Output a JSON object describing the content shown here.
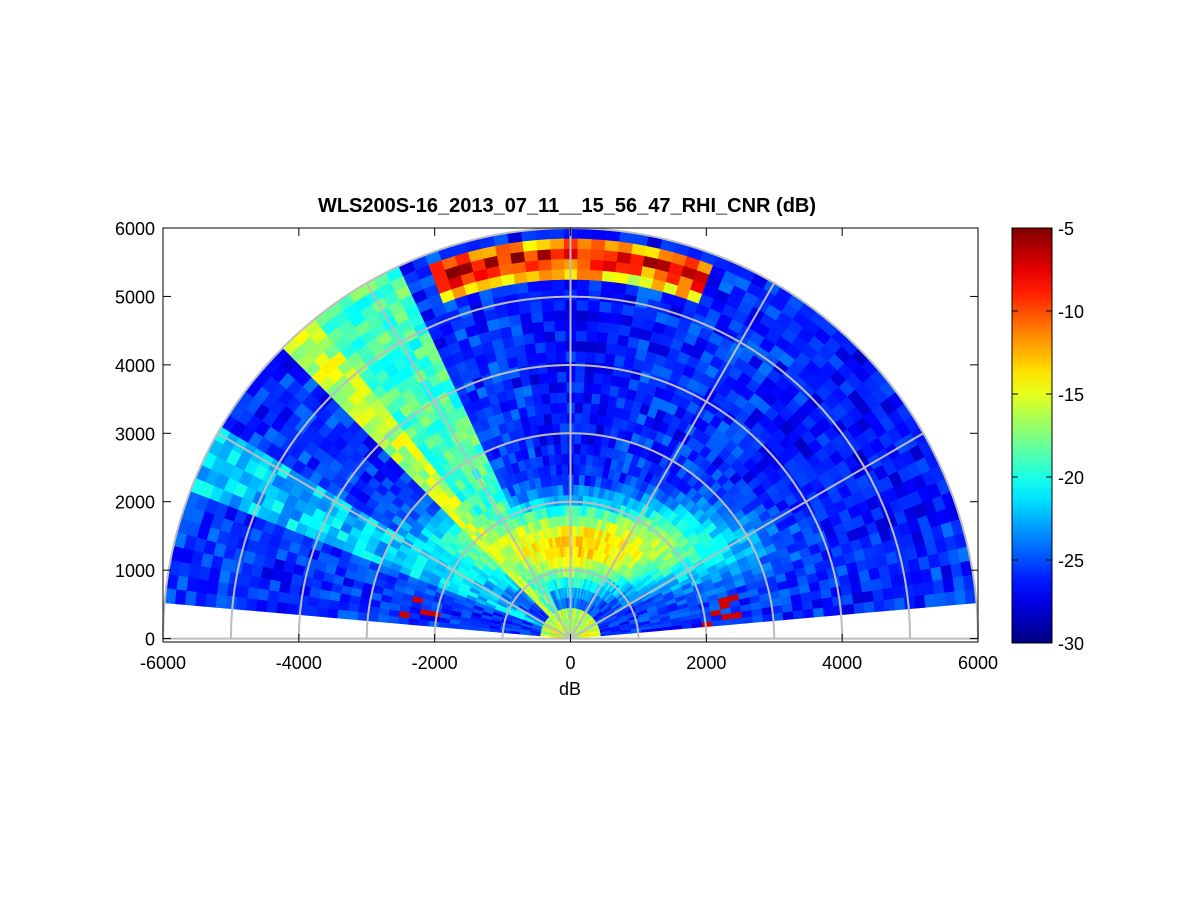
{
  "chart_data": {
    "type": "heatmap",
    "title": "WLS200S-16_2013_07_11__15_56_47_RHI_CNR (dB)",
    "xlabel": "dB",
    "ylabel": "",
    "xlim": [
      -6000,
      6000
    ],
    "ylim": [
      -50,
      6000
    ],
    "x_ticks": [
      -6000,
      -4000,
      -2000,
      0,
      2000,
      4000,
      6000
    ],
    "y_ticks": [
      0,
      1000,
      2000,
      3000,
      4000,
      5000,
      6000
    ],
    "grid": "polar",
    "colorbar": {
      "colormap": "jet",
      "min": -30,
      "max": -5,
      "ticks": [
        -5,
        -10,
        -15,
        -20,
        -25,
        -30
      ]
    },
    "scan": {
      "elevation_deg_range": [
        5,
        175
      ],
      "range_m_max": 6000,
      "range_gate_m": 150
    },
    "polar_grid": {
      "range_rings_m": [
        1000,
        2000,
        3000,
        4000,
        5000,
        6000
      ],
      "spokes_deg": [
        0,
        30,
        60,
        90,
        120,
        150,
        180
      ]
    },
    "sectors": [
      {
        "from_deg": 5,
        "to_deg": 20,
        "level": "low",
        "value_db": -26
      },
      {
        "from_deg": 20,
        "to_deg": 45,
        "level": "low",
        "value_db": -27
      },
      {
        "from_deg": 45,
        "to_deg": 80,
        "level": "low",
        "value_db": -26
      },
      {
        "from_deg": 80,
        "to_deg": 100,
        "level": "low",
        "value_db": -27
      },
      {
        "from_deg": 100,
        "to_deg": 115,
        "level": "low",
        "value_db": -26
      },
      {
        "from_deg": 115,
        "to_deg": 130,
        "level": "high",
        "value_db": -19
      },
      {
        "from_deg": 130,
        "to_deg": 135,
        "level": "high",
        "value_db": -16
      },
      {
        "from_deg": 135,
        "to_deg": 150,
        "level": "low",
        "value_db": -26
      },
      {
        "from_deg": 150,
        "to_deg": 160,
        "level": "low",
        "value_db": -22
      },
      {
        "from_deg": 160,
        "to_deg": 175,
        "level": "low",
        "value_db": -26
      }
    ],
    "features": [
      {
        "name": "boundary-layer",
        "center_x_m": 100,
        "center_y_m": 1350,
        "value_db": -13
      },
      {
        "name": "cloud-return",
        "range_m": 5600,
        "from_deg": 70,
        "to_deg": 110,
        "value_db": -7
      }
    ]
  }
}
